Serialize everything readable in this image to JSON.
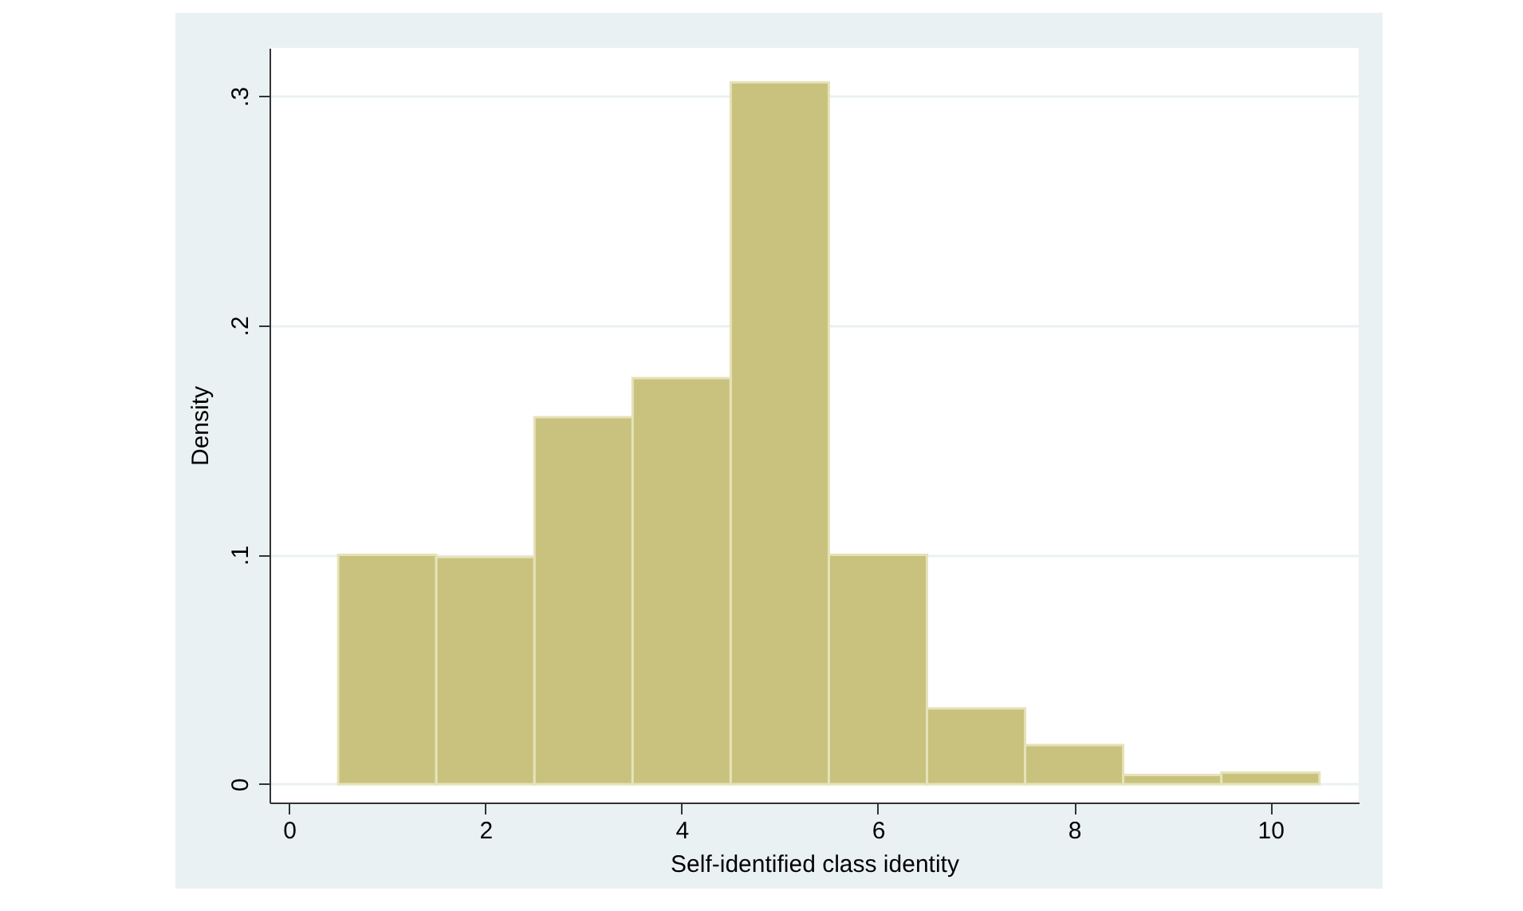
{
  "chart_data": {
    "type": "histogram",
    "xlabel": "Self-identified class identity",
    "ylabel": "Density",
    "bins": [
      0.5,
      1.5,
      2.5,
      3.5,
      4.5,
      5.5,
      6.5,
      7.5,
      8.5,
      9.5,
      10.5
    ],
    "values": [
      0.1,
      0.099,
      0.16,
      0.177,
      0.306,
      0.1,
      0.033,
      0.017,
      0.004,
      0.005
    ],
    "color": "#c9c27e",
    "xlim": [
      -0.2,
      10.9
    ],
    "xticks": [
      0,
      2,
      4,
      6,
      8,
      10
    ],
    "ylim": [
      -0.008,
      0.321
    ],
    "yticks": [
      0,
      {
        "value": 0.1,
        "label": ".1"
      },
      {
        "value": 0.2,
        "label": ".2"
      },
      {
        "value": 0.3,
        "label": ".3"
      }
    ],
    "grid": "y"
  }
}
